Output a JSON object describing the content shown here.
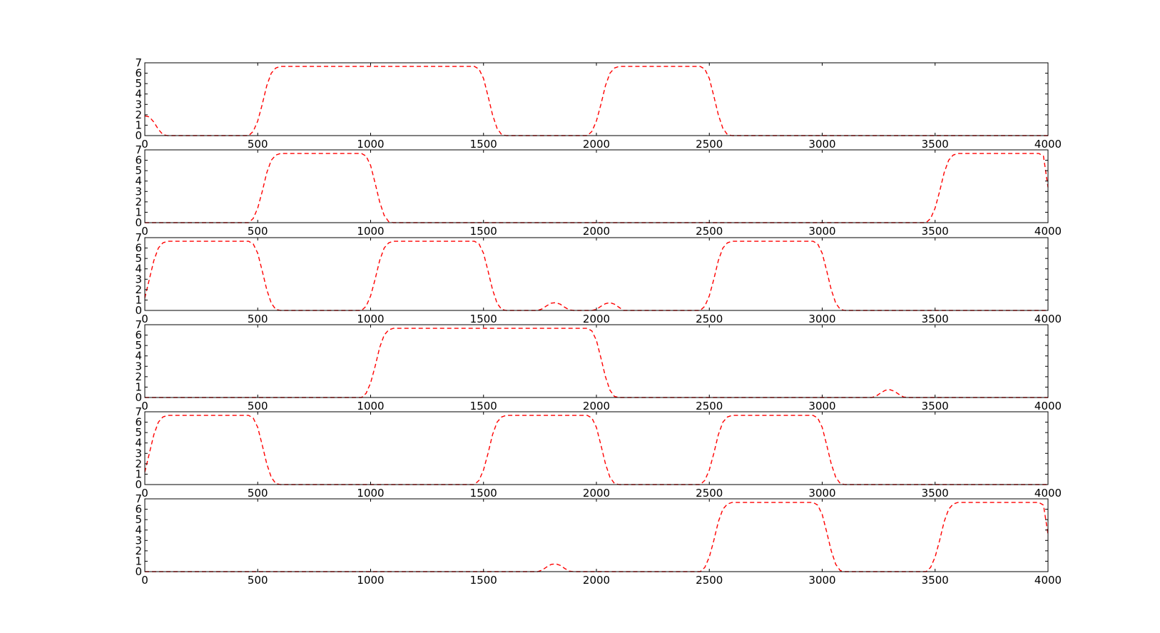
{
  "figure": {
    "line_color": "#ff0000",
    "line_style": "dashed",
    "background": "#ffffff"
  },
  "chart_data": [
    {
      "type": "line",
      "xlim": [
        0,
        4000
      ],
      "ylim": [
        0,
        7
      ],
      "x_ticks": [
        "0",
        "500",
        "1000",
        "1500",
        "2000",
        "2500",
        "3000",
        "3500",
        "4000"
      ],
      "y_ticks": [
        "0",
        "1",
        "2",
        "3",
        "4",
        "5",
        "6",
        "7"
      ],
      "grid": false,
      "series": [
        {
          "x": [
            0,
            20,
            40,
            60,
            80,
            100,
            460,
            480,
            500,
            520,
            540,
            560,
            580,
            600,
            1460,
            1480,
            1500,
            1520,
            1540,
            1560,
            1580,
            1600,
            1960,
            1980,
            2000,
            2020,
            2040,
            2060,
            2080,
            2100,
            2460,
            2480,
            2500,
            2520,
            2540,
            2560,
            2580,
            2600,
            4000
          ],
          "y": [
            1.9,
            1.8,
            1.3,
            0.6,
            0.1,
            0,
            0,
            0.4,
            1.4,
            3.0,
            4.8,
            6.0,
            6.5,
            6.65,
            6.65,
            6.4,
            5.5,
            3.8,
            2.0,
            0.7,
            0.1,
            0,
            0,
            0.4,
            1.4,
            3.0,
            4.8,
            6.0,
            6.5,
            6.65,
            6.65,
            6.4,
            5.5,
            3.8,
            2.0,
            0.7,
            0.1,
            0,
            0
          ]
        }
      ]
    },
    {
      "type": "line",
      "xlim": [
        0,
        4000
      ],
      "ylim": [
        0,
        7
      ],
      "x_ticks": [
        "0",
        "500",
        "1000",
        "1500",
        "2000",
        "2500",
        "3000",
        "3500",
        "4000"
      ],
      "y_ticks": [
        "0",
        "1",
        "2",
        "3",
        "4",
        "5",
        "6",
        "7"
      ],
      "grid": false,
      "series": [
        {
          "x": [
            0,
            460,
            480,
            500,
            520,
            540,
            560,
            580,
            600,
            960,
            980,
            1000,
            1020,
            1040,
            1060,
            1080,
            1100,
            3460,
            3480,
            3500,
            3520,
            3540,
            3560,
            3580,
            3600,
            3960,
            3980,
            4000
          ],
          "y": [
            0,
            0,
            0.4,
            1.4,
            3.0,
            4.8,
            6.0,
            6.5,
            6.65,
            6.65,
            6.4,
            5.5,
            3.8,
            2.0,
            0.7,
            0.1,
            0,
            0,
            0.4,
            1.4,
            3.0,
            4.8,
            6.0,
            6.5,
            6.65,
            6.65,
            6.4,
            3.4
          ]
        }
      ]
    },
    {
      "type": "line",
      "xlim": [
        0,
        4000
      ],
      "ylim": [
        0,
        7
      ],
      "x_ticks": [
        "0",
        "500",
        "1000",
        "1500",
        "2000",
        "2500",
        "3000",
        "3500",
        "4000"
      ],
      "y_ticks": [
        "0",
        "1",
        "2",
        "3",
        "4",
        "5",
        "6",
        "7"
      ],
      "grid": false,
      "series": [
        {
          "x": [
            0,
            20,
            40,
            60,
            80,
            100,
            460,
            480,
            500,
            520,
            540,
            560,
            580,
            600,
            960,
            980,
            1000,
            1020,
            1040,
            1060,
            1080,
            1100,
            1460,
            1480,
            1500,
            1520,
            1540,
            1560,
            1580,
            1600,
            1740,
            1760,
            1780,
            1800,
            1820,
            1840,
            1860,
            1880,
            1900,
            1980,
            2000,
            2020,
            2040,
            2060,
            2080,
            2100,
            2120,
            2460,
            2480,
            2500,
            2520,
            2540,
            2560,
            2580,
            2600,
            2960,
            2980,
            3000,
            3020,
            3040,
            3060,
            3080,
            3100,
            4000
          ],
          "y": [
            1.2,
            3.0,
            4.8,
            6.0,
            6.5,
            6.65,
            6.65,
            6.4,
            5.5,
            3.8,
            2.0,
            0.7,
            0.1,
            0,
            0,
            0.4,
            1.4,
            3.0,
            4.8,
            6.0,
            6.5,
            6.65,
            6.65,
            6.4,
            5.5,
            3.8,
            2.0,
            0.7,
            0.1,
            0,
            0,
            0.15,
            0.45,
            0.7,
            0.75,
            0.6,
            0.3,
            0.05,
            0,
            0,
            0.1,
            0.4,
            0.65,
            0.75,
            0.6,
            0.3,
            0,
            0,
            0.4,
            1.4,
            3.0,
            4.8,
            6.0,
            6.5,
            6.65,
            6.65,
            6.4,
            5.5,
            3.8,
            2.0,
            0.7,
            0.1,
            0,
            0
          ]
        }
      ]
    },
    {
      "type": "line",
      "xlim": [
        0,
        4000
      ],
      "ylim": [
        0,
        7
      ],
      "x_ticks": [
        "0",
        "500",
        "1000",
        "1500",
        "2000",
        "2500",
        "3000",
        "3500",
        "4000"
      ],
      "y_ticks": [
        "0",
        "1",
        "2",
        "3",
        "4",
        "5",
        "6",
        "7"
      ],
      "grid": false,
      "series": [
        {
          "x": [
            0,
            960,
            980,
            1000,
            1020,
            1040,
            1060,
            1080,
            1100,
            1960,
            1980,
            2000,
            2020,
            2040,
            2060,
            2080,
            2100,
            3220,
            3240,
            3260,
            3280,
            3300,
            3320,
            3340,
            3360,
            3380,
            4000
          ],
          "y": [
            0,
            0,
            0.4,
            1.4,
            3.0,
            4.8,
            6.0,
            6.5,
            6.65,
            6.65,
            6.4,
            5.5,
            3.8,
            2.0,
            0.7,
            0.1,
            0,
            0,
            0.15,
            0.45,
            0.7,
            0.75,
            0.6,
            0.3,
            0.05,
            0,
            0
          ]
        }
      ]
    },
    {
      "type": "line",
      "xlim": [
        0,
        4000
      ],
      "ylim": [
        0,
        7
      ],
      "x_ticks": [
        "0",
        "500",
        "1000",
        "1500",
        "2000",
        "2500",
        "3000",
        "3500",
        "4000"
      ],
      "y_ticks": [
        "0",
        "1",
        "2",
        "3",
        "4",
        "5",
        "6",
        "7"
      ],
      "grid": false,
      "series": [
        {
          "x": [
            0,
            20,
            40,
            60,
            80,
            100,
            460,
            480,
            500,
            520,
            540,
            560,
            580,
            600,
            1460,
            1480,
            1500,
            1520,
            1540,
            1560,
            1580,
            1600,
            1960,
            1980,
            2000,
            2020,
            2040,
            2060,
            2080,
            2100,
            2460,
            2480,
            2500,
            2520,
            2540,
            2560,
            2580,
            2600,
            2960,
            2980,
            3000,
            3020,
            3040,
            3060,
            3080,
            3100,
            4000
          ],
          "y": [
            1.2,
            3.0,
            4.8,
            6.0,
            6.5,
            6.65,
            6.65,
            6.4,
            5.5,
            3.8,
            2.0,
            0.7,
            0.1,
            0,
            0,
            0.4,
            1.4,
            3.0,
            4.8,
            6.0,
            6.5,
            6.65,
            6.65,
            6.4,
            5.5,
            3.8,
            2.0,
            0.7,
            0.1,
            0,
            0,
            0.4,
            1.4,
            3.0,
            4.8,
            6.0,
            6.5,
            6.65,
            6.65,
            6.4,
            5.5,
            3.8,
            2.0,
            0.7,
            0.1,
            0,
            0
          ]
        }
      ]
    },
    {
      "type": "line",
      "xlim": [
        0,
        4000
      ],
      "ylim": [
        0,
        7
      ],
      "x_ticks": [
        "0",
        "500",
        "1000",
        "1500",
        "2000",
        "2500",
        "3000",
        "3500",
        "4000"
      ],
      "y_ticks": [
        "0",
        "1",
        "2",
        "3",
        "4",
        "5",
        "6",
        "7"
      ],
      "grid": false,
      "series": [
        {
          "x": [
            0,
            1740,
            1760,
            1780,
            1800,
            1820,
            1840,
            1860,
            1880,
            1900,
            2460,
            2480,
            2500,
            2520,
            2540,
            2560,
            2580,
            2600,
            2960,
            2980,
            3000,
            3020,
            3040,
            3060,
            3080,
            3100,
            3460,
            3480,
            3500,
            3520,
            3540,
            3560,
            3580,
            3600,
            3960,
            3980,
            4000
          ],
          "y": [
            0,
            0,
            0.15,
            0.45,
            0.7,
            0.75,
            0.6,
            0.3,
            0.05,
            0,
            0,
            0.4,
            1.4,
            3.0,
            4.8,
            6.0,
            6.5,
            6.65,
            6.65,
            6.4,
            5.5,
            3.8,
            2.0,
            0.7,
            0.1,
            0,
            0,
            0.4,
            1.4,
            3.0,
            4.8,
            6.0,
            6.5,
            6.65,
            6.65,
            6.4,
            3.6
          ]
        }
      ]
    }
  ]
}
